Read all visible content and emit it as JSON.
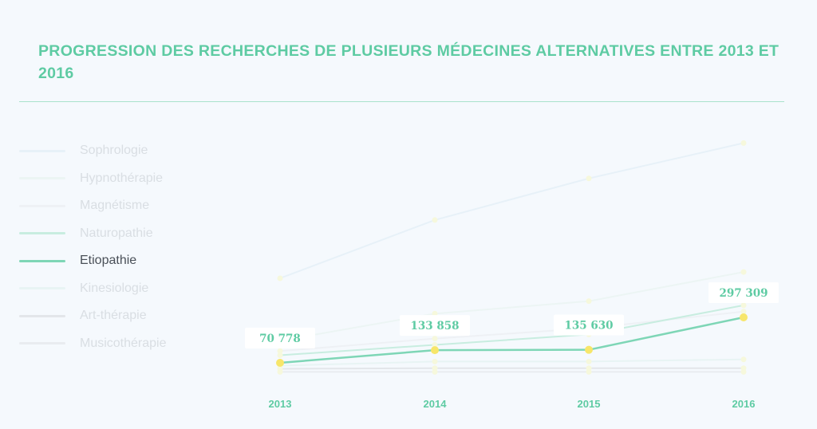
{
  "chart_data": {
    "type": "line",
    "title": "PROGRESSION DES RECHERCHES DE PLUSIEURS MÉDECINES ALTERNATIVES ENTRE 2013 ET 2016",
    "x": [
      "2013",
      "2014",
      "2015",
      "2016"
    ],
    "highlighted_series": "Etiopathie",
    "ylim": [
      0,
      1100000
    ],
    "grid": false,
    "legend_position": "left",
    "series": [
      {
        "name": "Sophrologie",
        "color": "#e7f1f8",
        "values": [
          460000,
          740000,
          940000,
          1110000
        ]
      },
      {
        "name": "Hypnothérapie",
        "color": "#ecf5f4",
        "values": [
          160000,
          290000,
          350000,
          490000
        ]
      },
      {
        "name": "Magnétisme",
        "color": "#eef1f5",
        "values": [
          110000,
          170000,
          220000,
          300000
        ]
      },
      {
        "name": "Naturopathie",
        "color": "#c8ede0",
        "values": [
          90000,
          140000,
          190000,
          330000
        ]
      },
      {
        "name": "Etiopathie",
        "color": "#7ed6b6",
        "values": [
          70778,
          133858,
          135630,
          297309
        ],
        "labels": [
          "70 778",
          "133 858",
          "135 630",
          "297 309"
        ]
      },
      {
        "name": "Kinesiologie",
        "color": "#e8f4f4",
        "values": [
          40000,
          60000,
          60000,
          70000
        ]
      },
      {
        "name": "Art-thérapie",
        "color": "#e3e6ea",
        "values": [
          25000,
          28000,
          28000,
          28000
        ]
      },
      {
        "name": "Musicothérapie",
        "color": "#e9ecf0",
        "values": [
          10000,
          10000,
          10000,
          10000
        ]
      }
    ],
    "marker_color": "#f7e66a",
    "faded_marker_color": "#f6f8dc"
  }
}
